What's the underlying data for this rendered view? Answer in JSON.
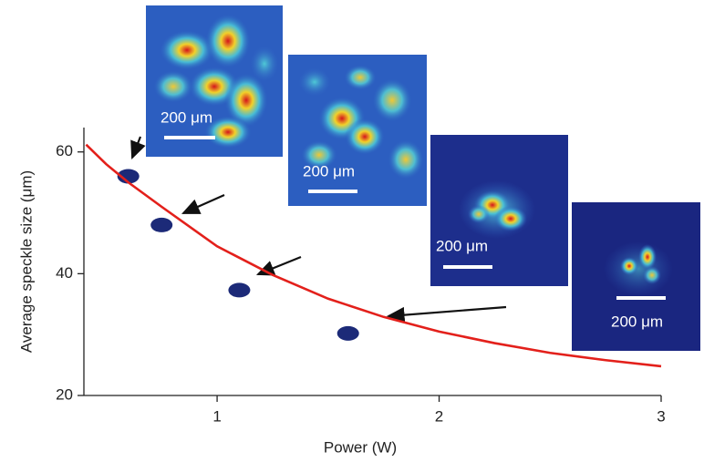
{
  "chart_data": {
    "type": "scatter",
    "x_label": "Power (W)",
    "y_label": "Average speckle size (μm)",
    "xlim": [
      0.4,
      3
    ],
    "ylim": [
      20,
      64
    ],
    "xticks": [
      1,
      2,
      3
    ],
    "yticks": [
      20,
      40,
      60
    ],
    "series": [
      {
        "type": "scatter",
        "color": "#1c2a78",
        "x": [
          0.6,
          0.75,
          1.1,
          1.59
        ],
        "values": [
          56,
          48,
          37.3,
          30.2
        ]
      },
      {
        "type": "line",
        "color": "#e3201b",
        "x": [
          0.41,
          0.5,
          0.6,
          0.75,
          1,
          1.25,
          1.5,
          1.75,
          2,
          2.25,
          2.5,
          2.75,
          3
        ],
        "values": [
          61.2,
          58,
          55,
          51,
          44.5,
          39.8,
          35.9,
          32.9,
          30.5,
          28.6,
          27,
          25.8,
          24.8
        ]
      }
    ],
    "annotations": [
      "200 μm",
      "200 μm",
      "200 μm",
      "200 μm"
    ]
  }
}
